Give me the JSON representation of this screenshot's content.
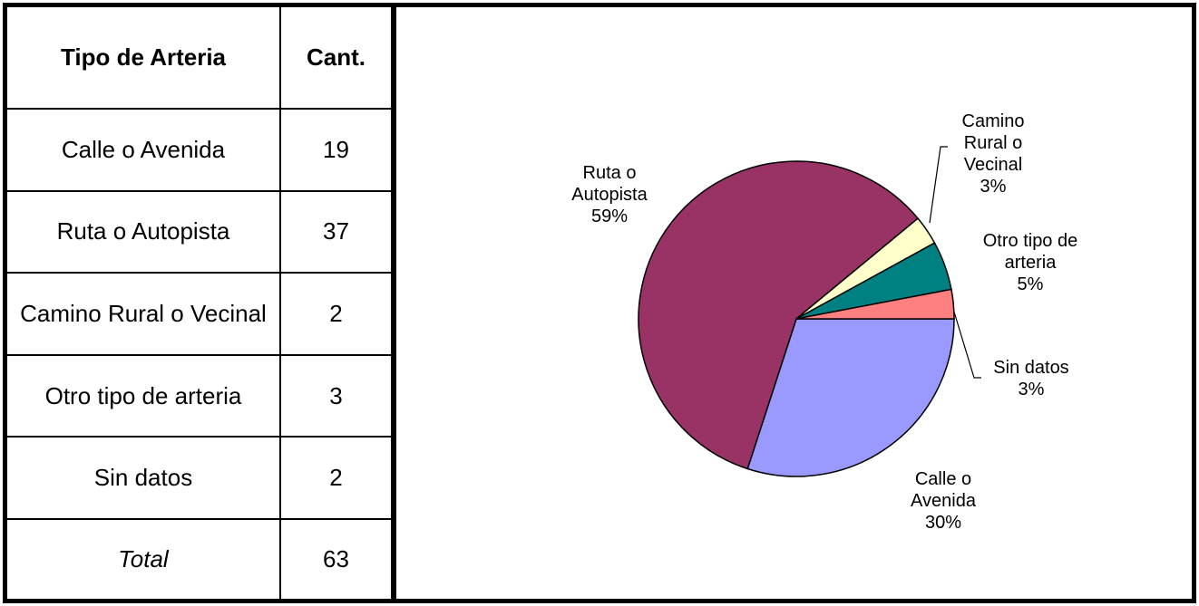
{
  "table": {
    "header": [
      "Tipo de Arteria",
      "Cant."
    ],
    "rows": [
      [
        "Calle o Avenida",
        "19"
      ],
      [
        "Ruta o Autopista",
        "37"
      ],
      [
        "Camino Rural o Vecinal",
        "2"
      ],
      [
        "Otro tipo de arteria",
        "3"
      ],
      [
        "Sin datos",
        "2"
      ],
      [
        "Total",
        "63"
      ]
    ]
  },
  "chart_data": {
    "type": "pie",
    "categories": [
      "Calle o Avenida",
      "Ruta o Autopista",
      "Camino Rural o Vecinal",
      "Otro tipo de arteria",
      "Sin datos"
    ],
    "values": [
      30,
      59,
      3,
      5,
      3
    ],
    "value_labels": [
      "30%",
      "59%",
      "3%",
      "5%",
      "3%"
    ],
    "colors": [
      "#9999ff",
      "#993366",
      "#ffffcc",
      "#008080",
      "#ff8080"
    ]
  }
}
